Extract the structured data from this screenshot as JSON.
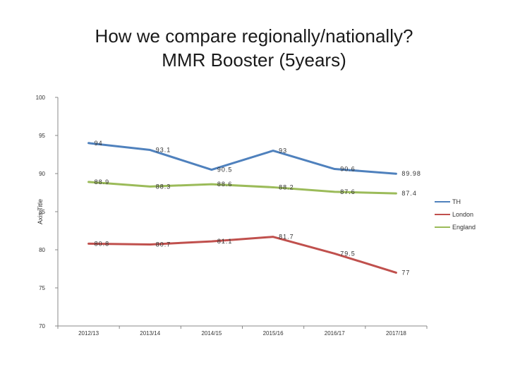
{
  "chart_data": {
    "type": "line",
    "title": "How we compare regionally/nationally?",
    "subtitle": "MMR Booster (5years)",
    "ylabel": "Axis Title",
    "xlabel": "",
    "categories": [
      "2012/13",
      "2013/14",
      "2014/15",
      "2015/16",
      "2016/17",
      "2017/18"
    ],
    "ylim": [
      70,
      100
    ],
    "yticks": [
      70,
      75,
      80,
      85,
      90,
      95,
      100
    ],
    "grid": false,
    "legend": "right",
    "series": [
      {
        "name": "TH",
        "color": "#4f81bd",
        "values": [
          94,
          93.1,
          90.5,
          93,
          90.6,
          89.98
        ],
        "labels": [
          "94",
          "93.1",
          "90.5",
          "93",
          "90.6",
          "89.98"
        ]
      },
      {
        "name": "London",
        "color": "#c0504d",
        "values": [
          80.8,
          80.7,
          81.1,
          81.7,
          79.5,
          77
        ],
        "labels": [
          "80.8",
          "80.7",
          "81.1",
          "81.7",
          "79.5",
          "77"
        ]
      },
      {
        "name": "England",
        "color": "#9bbb59",
        "values": [
          88.9,
          88.3,
          88.6,
          88.2,
          87.6,
          87.4
        ],
        "labels": [
          "88.9",
          "88.3",
          "88.6",
          "88.2",
          "87.6",
          "87.4"
        ]
      }
    ]
  }
}
